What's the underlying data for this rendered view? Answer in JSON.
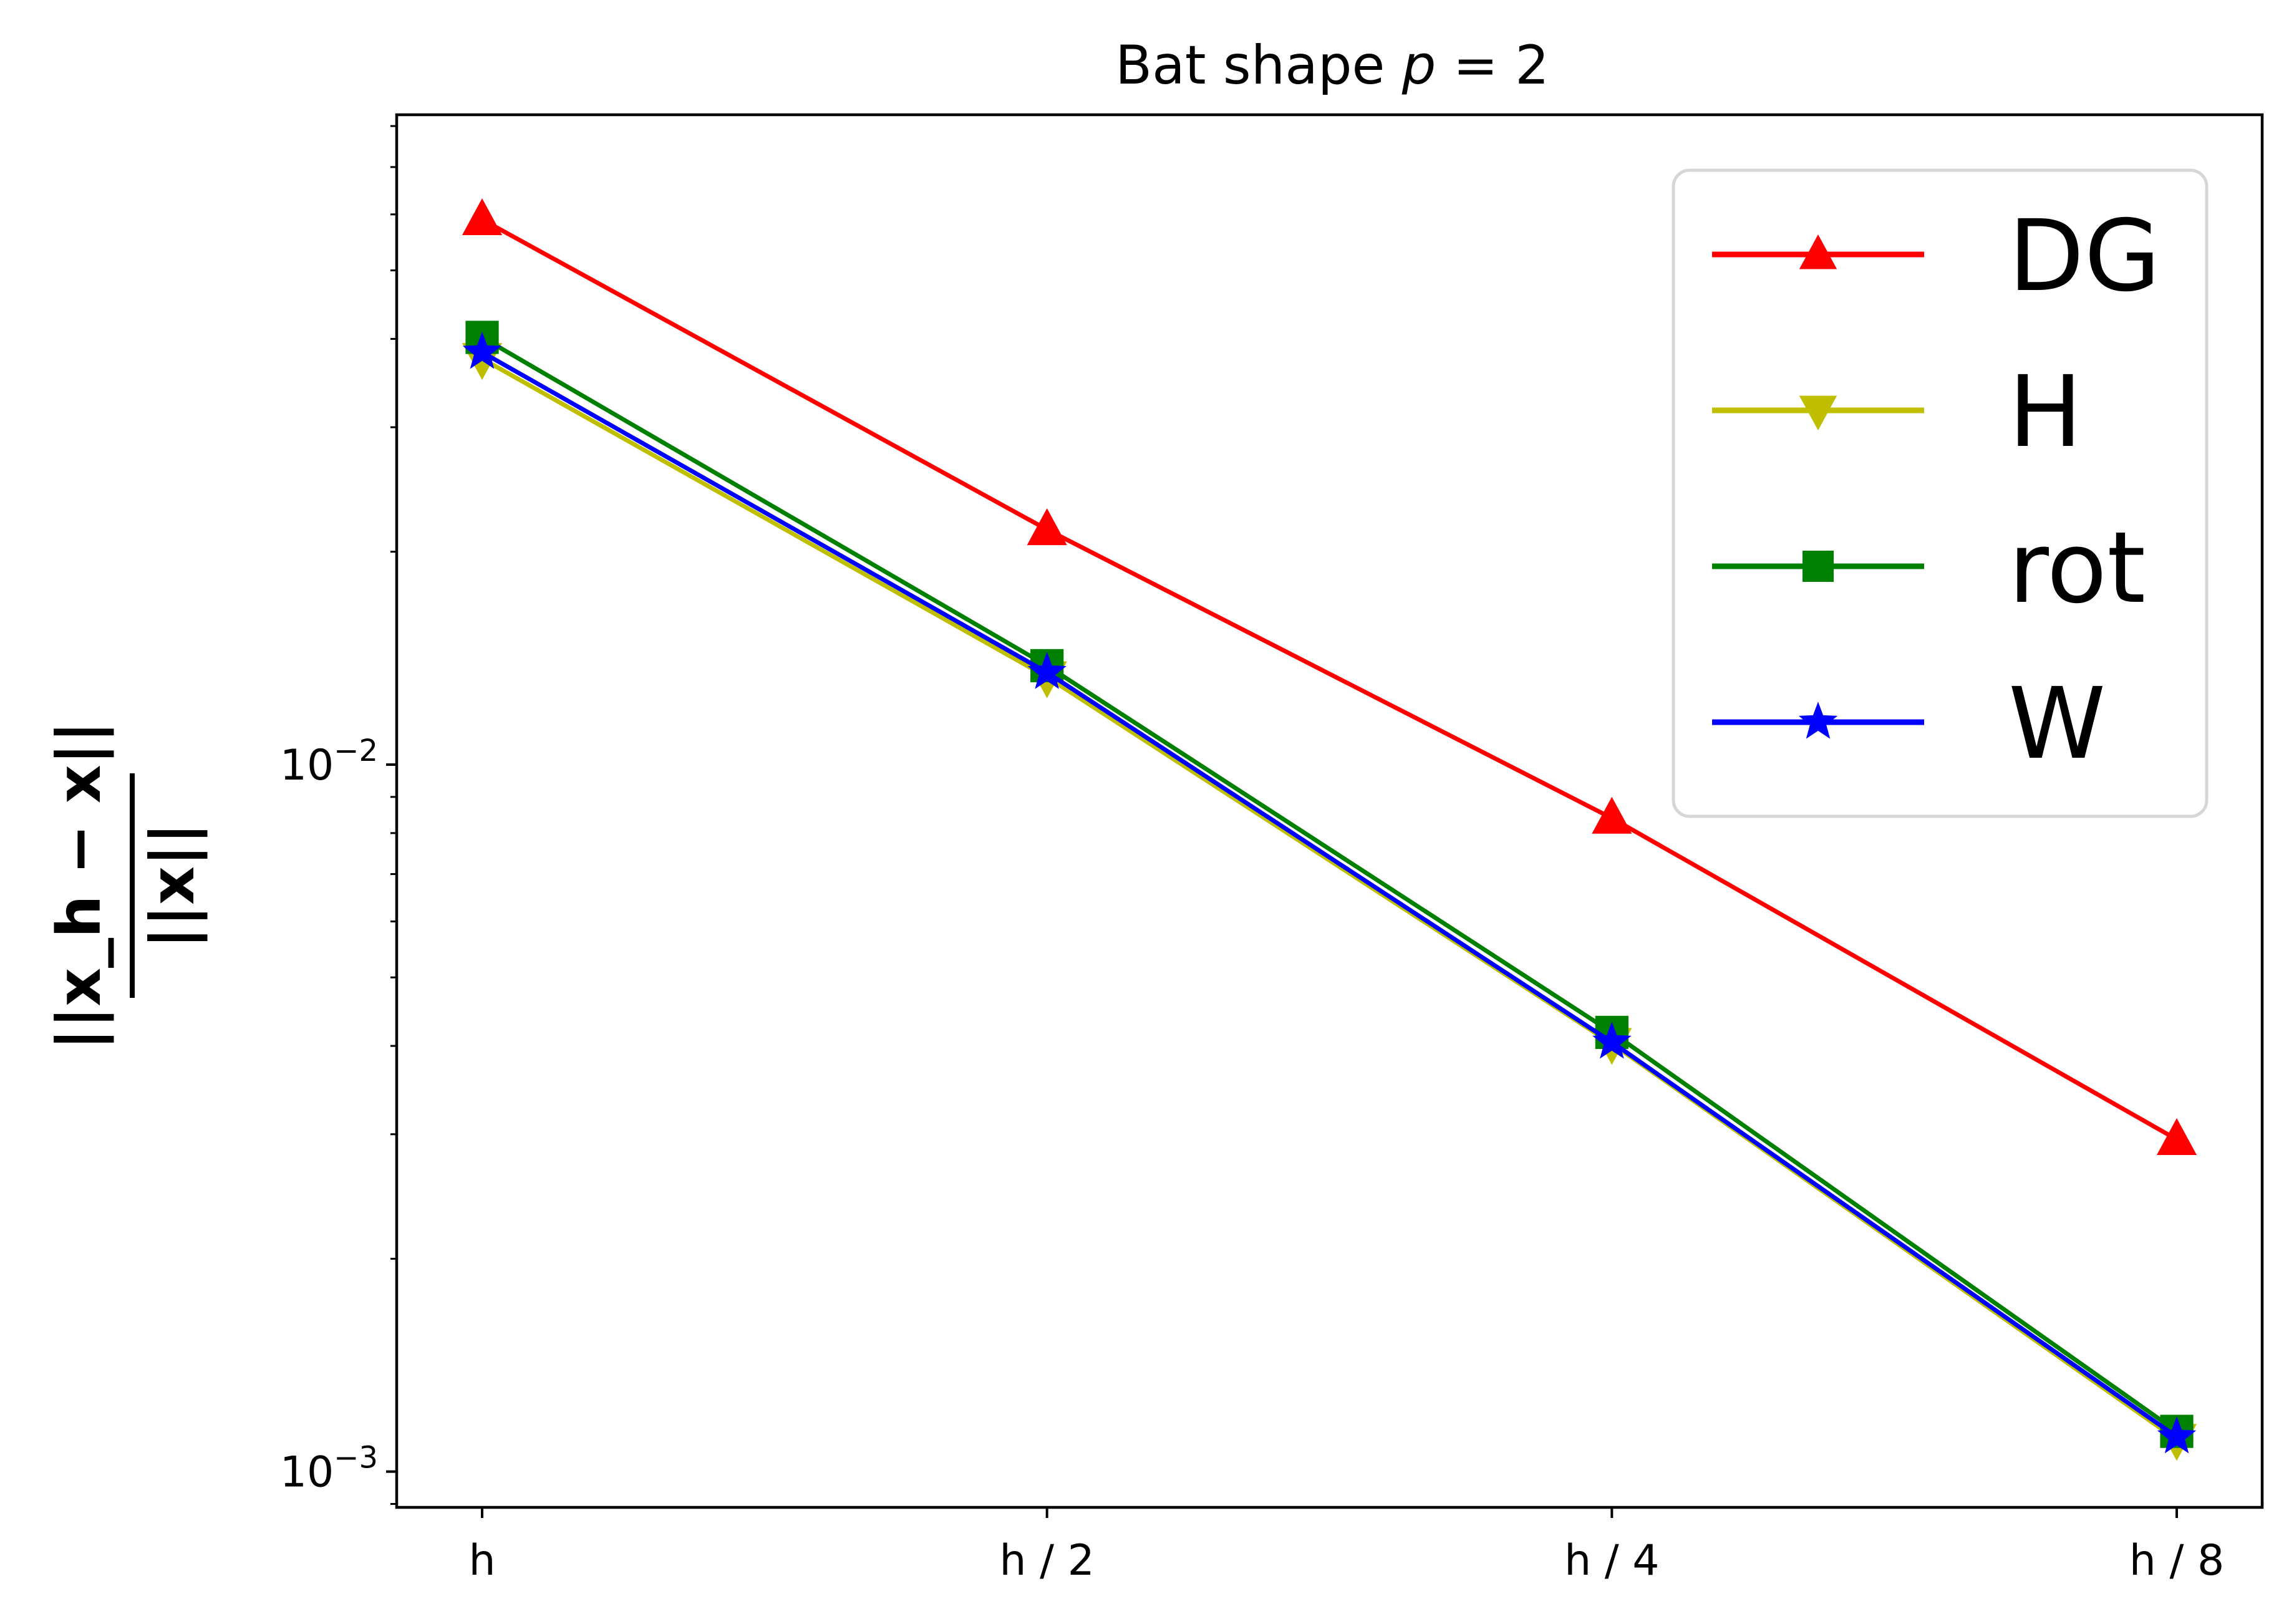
{
  "chart_data": {
    "type": "line",
    "title_prefix": "Bat shape ",
    "title_var": "p",
    "title_rest": " = 2",
    "ylabel_numerator": "||x_h − x||",
    "ylabel_denominator": "||x||",
    "categories": [
      "h",
      "h / 2",
      "h / 4",
      "h / 8"
    ],
    "yscale": "log",
    "ylim": [
      0.00089,
      0.083
    ],
    "yticks": [
      {
        "value": 0.01,
        "base": "10",
        "exp": "−2"
      },
      {
        "value": 0.001,
        "base": "10",
        "exp": "−3"
      }
    ],
    "legend_position": "top-right",
    "grid": false,
    "series": [
      {
        "name": "DG",
        "color": "#ff0000",
        "marker": "triangle-up",
        "values": [
          0.059,
          0.0215,
          0.0084,
          0.00295
        ]
      },
      {
        "name": "H",
        "color": "#bfbf00",
        "marker": "triangle-down",
        "values": [
          0.0375,
          0.0133,
          0.00403,
          0.00111
        ]
      },
      {
        "name": "rot",
        "color": "#008000",
        "marker": "square",
        "values": [
          0.0402,
          0.0138,
          0.00418,
          0.00114
        ]
      },
      {
        "name": "W",
        "color": "#0000ff",
        "marker": "star",
        "values": [
          0.0383,
          0.0135,
          0.00405,
          0.00112
        ]
      }
    ]
  }
}
